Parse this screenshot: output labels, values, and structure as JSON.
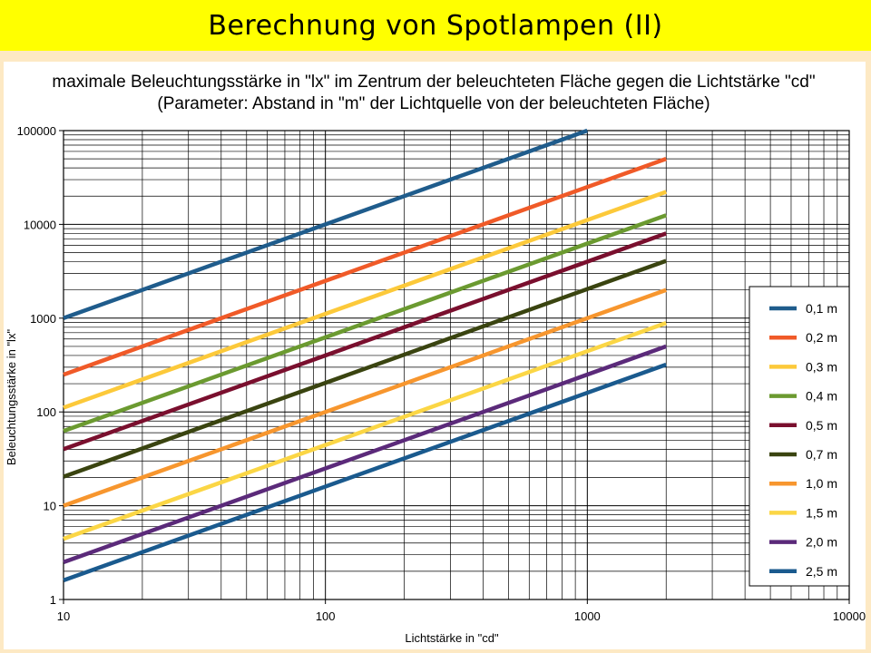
{
  "slide": {
    "title": "Berechnung von Spotlampen (II)"
  },
  "chart_data": {
    "type": "line",
    "title_line1": "maximale Beleuchtungsstärke in \"lx\" im Zentrum der beleuchteten Fläche gegen die Lichtstärke \"cd\"",
    "title_line2": "(Parameter: Abstand in \"m\" der Lichtquelle von der beleuchteten Fläche)",
    "xlabel": "Lichtstärke in \"cd\"",
    "ylabel": "Beleuchtungsstärke in \"lx\"",
    "xscale": "log",
    "yscale": "log",
    "xlim": [
      10,
      10000
    ],
    "ylim": [
      1,
      100000
    ],
    "x_ticks": [
      "10",
      "100",
      "1000",
      "10000"
    ],
    "y_ticks": [
      "1",
      "10",
      "100",
      "1000",
      "10000",
      "100000"
    ],
    "grid": true,
    "legend_position": "right",
    "series": [
      {
        "name": "0,1 m",
        "color": "#1f5c8c",
        "x": [
          10,
          1000
        ],
        "y": [
          1000,
          100000
        ]
      },
      {
        "name": "0,2 m",
        "color": "#f05a28",
        "x": [
          10,
          2000
        ],
        "y": [
          250,
          50000
        ]
      },
      {
        "name": "0,3 m",
        "color": "#fcc93a",
        "x": [
          10,
          2000
        ],
        "y": [
          111,
          22222
        ]
      },
      {
        "name": "0,4 m",
        "color": "#6b9a30",
        "x": [
          10,
          2000
        ],
        "y": [
          62.5,
          12500
        ]
      },
      {
        "name": "0,5 m",
        "color": "#7a0f2e",
        "x": [
          10,
          2000
        ],
        "y": [
          40,
          8000
        ]
      },
      {
        "name": "0,7 m",
        "color": "#3a4410",
        "x": [
          10,
          2000
        ],
        "y": [
          20.4,
          4082
        ]
      },
      {
        "name": "1,0 m",
        "color": "#f7962e",
        "x": [
          10,
          2000
        ],
        "y": [
          10,
          2000
        ]
      },
      {
        "name": "1,5 m",
        "color": "#fbd645",
        "x": [
          10,
          2000
        ],
        "y": [
          4.44,
          889
        ]
      },
      {
        "name": "2,0 m",
        "color": "#5b2a7a",
        "x": [
          10,
          2000
        ],
        "y": [
          2.5,
          500
        ]
      },
      {
        "name": "2,5 m",
        "color": "#1a5a8e",
        "x": [
          10,
          2000
        ],
        "y": [
          1.6,
          320
        ]
      }
    ]
  }
}
